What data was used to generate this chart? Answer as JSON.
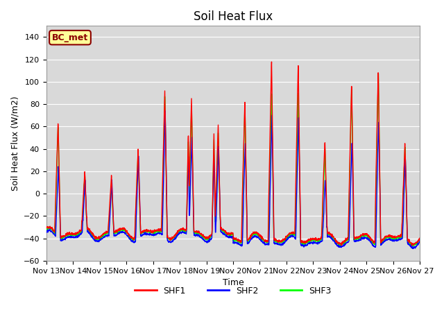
{
  "title": "Soil Heat Flux",
  "ylabel": "Soil Heat Flux (W/m2)",
  "xlabel": "Time",
  "ylim": [
    -60,
    150
  ],
  "yticks": [
    -60,
    -40,
    -20,
    0,
    20,
    40,
    60,
    80,
    100,
    120,
    140
  ],
  "xtick_labels": [
    "Nov 13",
    "Nov 14",
    "Nov 15",
    "Nov 16",
    "Nov 17",
    "Nov 18",
    "Nov 19",
    "Nov 20",
    "Nov 21",
    "Nov 22",
    "Nov 23",
    "Nov 24",
    "Nov 25",
    "Nov 26",
    "Nov 27"
  ],
  "colors": {
    "SHF1": "red",
    "SHF2": "blue",
    "SHF3": "lime"
  },
  "bg_color": "#d9d9d9",
  "annotation_text": "BC_met",
  "annotation_bg": "#ffff99",
  "annotation_border": "#8B0000",
  "title_fontsize": 12,
  "label_fontsize": 9,
  "tick_fontsize": 8,
  "legend_fontsize": 9,
  "linewidth": 1.0
}
